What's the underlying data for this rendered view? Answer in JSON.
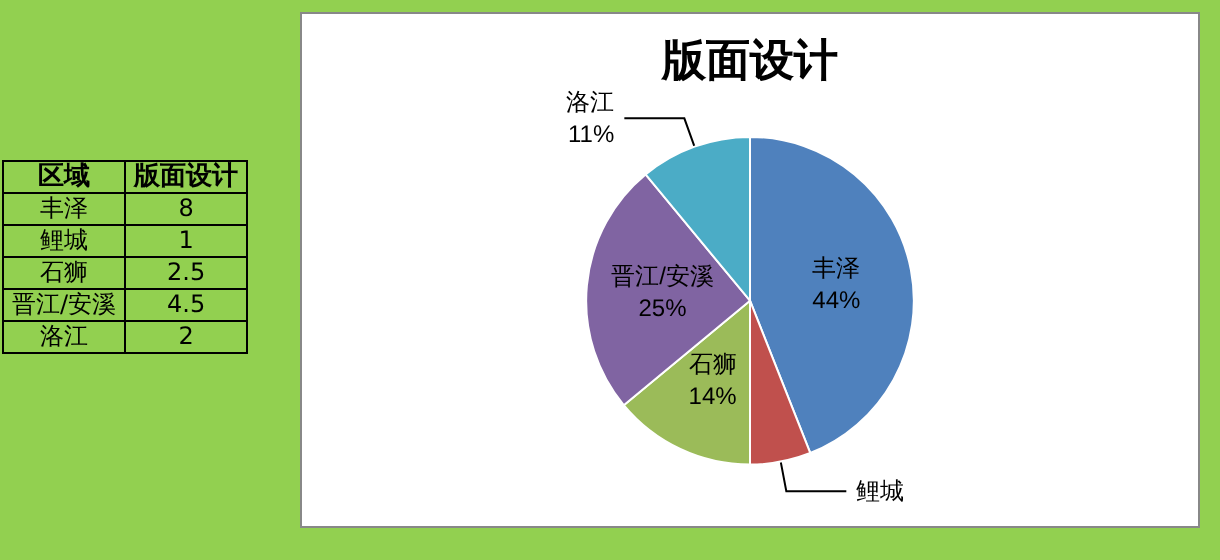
{
  "chart_data": [
    {
      "type": "other",
      "xlabel": "区域",
      "categories": [
        "丰泽",
        "鲤城",
        "石狮",
        "晋江/安溪",
        "洛江"
      ],
      "series": [
        {
          "name": "版面设计",
          "values": [
            8,
            1,
            2.5,
            4.5,
            2
          ]
        }
      ],
      "data_labels": true
    },
    {
      "type": "pie",
      "title": "版面设计",
      "categories": [
        "丰泽",
        "鲤城",
        "石狮",
        "晋江/安溪",
        "洛江"
      ],
      "values": [
        44,
        6,
        14,
        25,
        11
      ],
      "value_labels": [
        "44%",
        null,
        "14%",
        "25%",
        "11%"
      ],
      "colors": [
        "#4f81bd",
        "#c0504d",
        "#9bbb59",
        "#8064a2",
        "#4bacc6"
      ]
    }
  ]
}
